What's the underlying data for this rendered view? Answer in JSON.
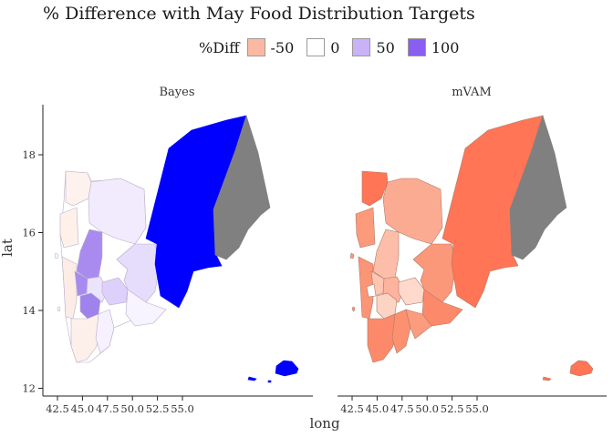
{
  "title": "% Difference with May Food Distribution Targets",
  "legend": {
    "title": "%Diff",
    "items": [
      {
        "label": "-50",
        "color": "#fdb8a3"
      },
      {
        "label": "0",
        "color": "#ffffff"
      },
      {
        "label": "50",
        "color": "#c9b2f7"
      },
      {
        "label": "100",
        "color": "#8a5ef0"
      }
    ]
  },
  "chart_data": {
    "type": "map",
    "xlabel": "long",
    "ylabel": "lat",
    "x_ticks": [
      "42.5",
      "45.0",
      "47.5",
      "50.0",
      "52.5",
      "55.0"
    ],
    "y_ticks": [
      "12",
      "14",
      "16",
      "18"
    ],
    "xlim": [
      42.3,
      55.0
    ],
    "ylim": [
      11.95,
      19.4
    ],
    "colors": {
      "saturated_high": "#0000ff",
      "saturated_low": "#ff7555",
      "missing": "#808080"
    },
    "panels": [
      {
        "name": "Bayes",
        "east_region": "saturated_high",
        "socotra": "saturated_high",
        "far_east": "missing"
      },
      {
        "name": "mVAM",
        "east_region": "saturated_low",
        "socotra": "saturated_low",
        "far_east": "missing"
      }
    ]
  }
}
